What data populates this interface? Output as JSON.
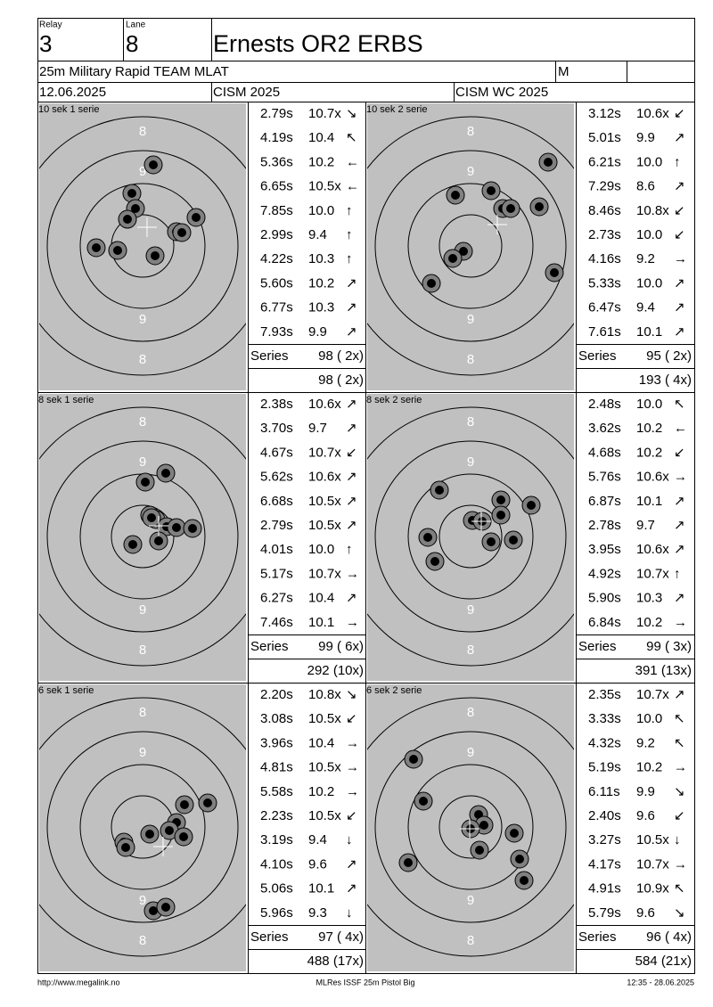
{
  "header": {
    "relay_label": "Relay",
    "relay": "3",
    "lane_label": "Lane",
    "lane": "8",
    "name": "Ernests OR2 ERBS",
    "event": "25m Military Rapid TEAM MLAT",
    "class": "M",
    "date": "12.06.2025",
    "competition": "CISM 2025",
    "match": "CISM WC 2025"
  },
  "panels": [
    {
      "title": "10 sek 1 serie",
      "shots": [
        {
          "time": "2.79s",
          "score": "10.7x",
          "dir": "↘"
        },
        {
          "time": "4.19s",
          "score": "10.4",
          "dir": "↖"
        },
        {
          "time": "5.36s",
          "score": "10.2",
          "dir": "←"
        },
        {
          "time": "6.65s",
          "score": "10.5x",
          "dir": "←"
        },
        {
          "time": "7.85s",
          "score": "10.0",
          "dir": "↑"
        },
        {
          "time": "2.99s",
          "score": "9.4",
          "dir": "↑"
        },
        {
          "time": "4.22s",
          "score": "10.3",
          "dir": "↑"
        },
        {
          "time": "5.60s",
          "score": "10.2",
          "dir": "↗"
        },
        {
          "time": "6.77s",
          "score": "10.3",
          "dir": "↗"
        },
        {
          "time": "7.93s",
          "score": "9.9",
          "dir": "↗"
        }
      ],
      "series_label": "Series",
      "series": "98 ( 2x)",
      "total": "98 ( 2x)"
    },
    {
      "title": "10 sek 2 serie",
      "shots": [
        {
          "time": "3.12s",
          "score": "10.6x",
          "dir": "↙"
        },
        {
          "time": "5.01s",
          "score": "9.9",
          "dir": "↗"
        },
        {
          "time": "6.21s",
          "score": "10.0",
          "dir": "↑"
        },
        {
          "time": "7.29s",
          "score": "8.6",
          "dir": "↗"
        },
        {
          "time": "8.46s",
          "score": "10.8x",
          "dir": "↙"
        },
        {
          "time": "2.73s",
          "score": "10.0",
          "dir": "↙"
        },
        {
          "time": "4.16s",
          "score": "9.2",
          "dir": "→"
        },
        {
          "time": "5.33s",
          "score": "10.0",
          "dir": "↗"
        },
        {
          "time": "6.47s",
          "score": "9.4",
          "dir": "↗"
        },
        {
          "time": "7.61s",
          "score": "10.1",
          "dir": "↗"
        }
      ],
      "series_label": "Series",
      "series": "95 ( 2x)",
      "total": "193 ( 4x)"
    },
    {
      "title": "8 sek 1 serie",
      "shots": [
        {
          "time": "2.38s",
          "score": "10.6x",
          "dir": "↗"
        },
        {
          "time": "3.70s",
          "score": "9.7",
          "dir": "↗"
        },
        {
          "time": "4.67s",
          "score": "10.7x",
          "dir": "↙"
        },
        {
          "time": "5.62s",
          "score": "10.6x",
          "dir": "↗"
        },
        {
          "time": "6.68s",
          "score": "10.5x",
          "dir": "↗"
        },
        {
          "time": "2.79s",
          "score": "10.5x",
          "dir": "↗"
        },
        {
          "time": "4.01s",
          "score": "10.0",
          "dir": "↑"
        },
        {
          "time": "5.17s",
          "score": "10.7x",
          "dir": "→"
        },
        {
          "time": "6.27s",
          "score": "10.4",
          "dir": "↗"
        },
        {
          "time": "7.46s",
          "score": "10.1",
          "dir": "→"
        }
      ],
      "series_label": "Series",
      "series": "99 ( 6x)",
      "total": "292 (10x)"
    },
    {
      "title": "8 sek 2 serie",
      "shots": [
        {
          "time": "2.48s",
          "score": "10.0",
          "dir": "↖"
        },
        {
          "time": "3.62s",
          "score": "10.2",
          "dir": "←"
        },
        {
          "time": "4.68s",
          "score": "10.2",
          "dir": "↙"
        },
        {
          "time": "5.76s",
          "score": "10.6x",
          "dir": "→"
        },
        {
          "time": "6.87s",
          "score": "10.1",
          "dir": "↗"
        },
        {
          "time": "2.78s",
          "score": "9.7",
          "dir": "↗"
        },
        {
          "time": "3.95s",
          "score": "10.6x",
          "dir": "↗"
        },
        {
          "time": "4.92s",
          "score": "10.7x",
          "dir": "↑"
        },
        {
          "time": "5.90s",
          "score": "10.3",
          "dir": "↗"
        },
        {
          "time": "6.84s",
          "score": "10.2",
          "dir": "→"
        }
      ],
      "series_label": "Series",
      "series": "99 ( 3x)",
      "total": "391 (13x)"
    },
    {
      "title": "6 sek 1 serie",
      "shots": [
        {
          "time": "2.20s",
          "score": "10.8x",
          "dir": "↘"
        },
        {
          "time": "3.08s",
          "score": "10.5x",
          "dir": "↙"
        },
        {
          "time": "3.96s",
          "score": "10.4",
          "dir": "→"
        },
        {
          "time": "4.81s",
          "score": "10.5x",
          "dir": "→"
        },
        {
          "time": "5.58s",
          "score": "10.2",
          "dir": "→"
        },
        {
          "time": "2.23s",
          "score": "10.5x",
          "dir": "↙"
        },
        {
          "time": "3.19s",
          "score": "9.4",
          "dir": "↓"
        },
        {
          "time": "4.10s",
          "score": "9.6",
          "dir": "↗"
        },
        {
          "time": "5.06s",
          "score": "10.1",
          "dir": "↗"
        },
        {
          "time": "5.96s",
          "score": "9.3",
          "dir": "↓"
        }
      ],
      "series_label": "Series",
      "series": "97 ( 4x)",
      "total": "488 (17x)"
    },
    {
      "title": "6 sek 2 serie",
      "shots": [
        {
          "time": "2.35s",
          "score": "10.7x",
          "dir": "↗"
        },
        {
          "time": "3.33s",
          "score": "10.0",
          "dir": "↖"
        },
        {
          "time": "4.32s",
          "score": "9.2",
          "dir": "↖"
        },
        {
          "time": "5.19s",
          "score": "10.2",
          "dir": "→"
        },
        {
          "time": "6.11s",
          "score": "9.9",
          "dir": "↘"
        },
        {
          "time": "2.40s",
          "score": "9.6",
          "dir": "↙"
        },
        {
          "time": "3.27s",
          "score": "10.5x",
          "dir": "↓"
        },
        {
          "time": "4.17s",
          "score": "10.7x",
          "dir": "→"
        },
        {
          "time": "4.91s",
          "score": "10.9x",
          "dir": "↖"
        },
        {
          "time": "5.79s",
          "score": "9.6",
          "dir": "↘"
        }
      ],
      "series_label": "Series",
      "series": "96 ( 4x)",
      "total": "584 (21x)"
    }
  ],
  "ring_labels": {
    "inner": "9",
    "outer": "8"
  },
  "footer": {
    "url": "http://www.megalink.no",
    "software": "MLRes ISSF 25m Pistol Big",
    "timestamp": "12:35 - 28.06.2025"
  }
}
